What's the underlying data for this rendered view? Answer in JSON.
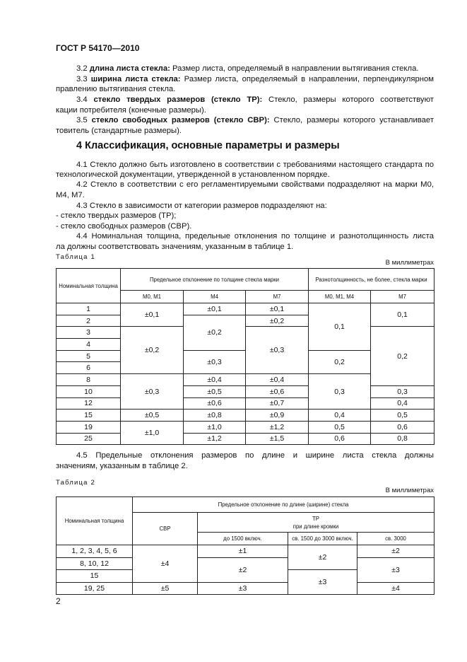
{
  "doc": {
    "header": "ГОСТ Р 54170—2010",
    "page_number": "2"
  },
  "defs": [
    {
      "num": "3.2",
      "term": "длина листа стекла:",
      "lines": [
        "Размер листа, определяемый в направлении вытягивания стекла."
      ]
    },
    {
      "num": "3.3",
      "term": "ширина листа стекла:",
      "lines": [
        "Размер листа, определяемый в направлении, перпендикулярном на-",
        "правлению вытягивания стекла."
      ]
    },
    {
      "num": "3.4",
      "term": "стекло твердых размеров (стекло ТР):",
      "lines": [
        "Стекло, размеры которого соответствуют специфи-",
        "кации потребителя (конечные размеры)."
      ]
    },
    {
      "num": "3.5",
      "term": "стекло свободных размеров (стекло СВР):",
      "lines": [
        "Стекло, размеры которого устанавливает изго-",
        "товитель (стандартные размеры)."
      ]
    }
  ],
  "section_title": "4 Классификация, основные параметры и размеры",
  "paras": [
    "4.1 Стекло должно быть изготовлено в соответствии с требованиями настоящего стандарта по",
    "технологической документации, утвержденной в установленном порядке.",
    "4.2 Стекло в соответствии с его регламентируемыми свойствами подразделяют на марки М0, М1,",
    "М4, М7.",
    "4.3 Стекло в зависимости от категории размеров подразделяют на:",
    "- стекло твердых размеров (ТР);",
    "- стекло свободных размеров (СВР).",
    "4.4 Номинальная толщина, предельные отклонения по толщине и разнотолщинность листа стек-",
    "ла должны соответствовать значениям, указанным в таблице 1."
  ],
  "table1": {
    "caption": "Таблица 1",
    "units": "В миллиметрах",
    "h_nominal": "Номинальная толщина",
    "h_dev": "Предельное отклонение по толщине стекла марки",
    "h_var": "Разнотолщинность, не более, стекла марки",
    "sub": [
      "М0, М1",
      "М4",
      "М7",
      "М0, М1, М4",
      "М7"
    ],
    "thickness": [
      "1",
      "2",
      "3",
      "4",
      "5",
      "6",
      "8",
      "10",
      "12",
      "15",
      "19",
      "25"
    ],
    "m01": [
      "±0,1",
      "±0,2",
      "±0,3",
      "±0,5",
      "±1,0"
    ],
    "m4": [
      "±0,1",
      "±0,2",
      "±0,3",
      "±0,4",
      "±0,5",
      "±0,6",
      "±0,8",
      "±1,0",
      "±1,2"
    ],
    "m7": [
      "±0,1",
      "±0,2",
      "±0,3",
      "±0,4",
      "±0,6",
      "±0,7",
      "±0,9",
      "±1,2",
      "±1,5"
    ],
    "v014": [
      "0,1",
      "0,2",
      "0,3",
      "0,4",
      "0,5",
      "0,6"
    ],
    "v7": [
      "0,1",
      "0,2",
      "0,3",
      "0,4",
      "0,5",
      "0,6",
      "0,8"
    ]
  },
  "para45": [
    "4.5 Предельные отклонения размеров по длине и ширине листа стекла должны соответствовать",
    "значениям, указанным в таблице 2."
  ],
  "table2": {
    "caption": "Таблица 2",
    "units": "В миллиметрах",
    "h_nominal": "Номинальная толщина",
    "h_dev": "Предельное отклонение по длине (ширине) стекла",
    "h_svr": "СВР",
    "h_tr": "ТР",
    "h_tr2": "при длине кромки",
    "sub": [
      "до 1500 включ.",
      "св. 1500 до 3000 включ.",
      "св. 3000"
    ],
    "thickness": [
      "1, 2, 3, 4, 5, 6",
      "8, 10, 12",
      "15",
      "19, 25"
    ],
    "svr": [
      "±4",
      "±5"
    ],
    "c1": [
      "±1",
      "±2",
      "±3"
    ],
    "c2": [
      "±2",
      "±3"
    ],
    "c3": [
      "±2",
      "±3",
      "±4"
    ]
  }
}
